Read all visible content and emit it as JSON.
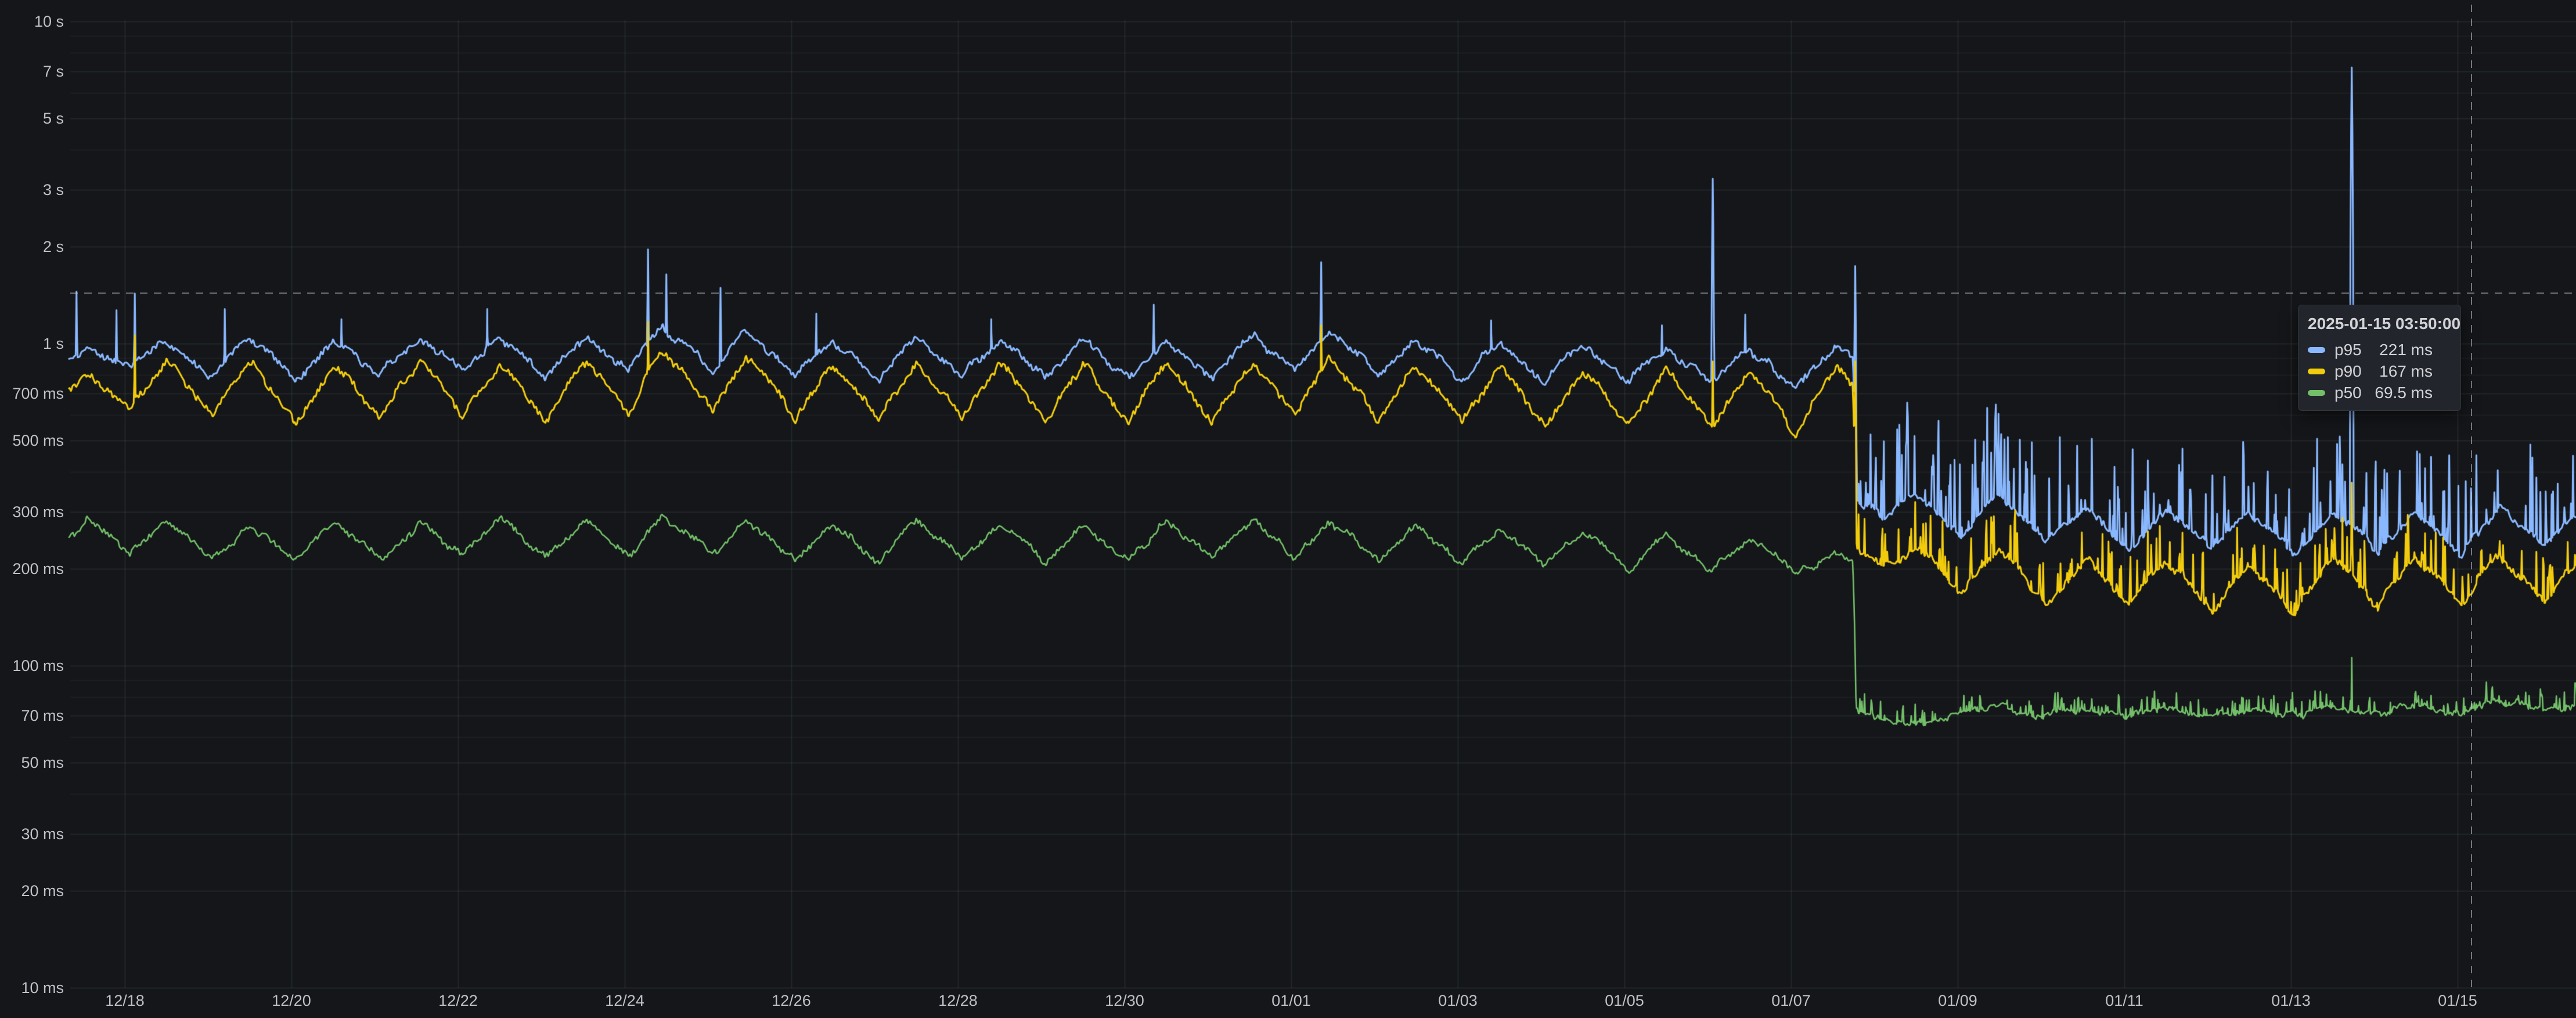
{
  "panel": {
    "background": "#141619",
    "grid_major": "rgba(201,209,224,0.085)",
    "grid_minor": "rgba(201,209,224,0.05)"
  },
  "tooltip": {
    "title": "2025-01-15 03:50:00",
    "rows": [
      {
        "label": "p95",
        "value": "221 ms",
        "color": "#8AB8FF"
      },
      {
        "label": "p90",
        "value": "167 ms",
        "color": "#F2CC0C"
      },
      {
        "label": "p50",
        "value": "69.5 ms",
        "color": "#73BF69"
      }
    ]
  },
  "chart_data": {
    "type": "line",
    "title": "",
    "grid": true,
    "legend_position": "none (values shown in hover tooltip)",
    "x_axis": {
      "unit": "date (MM/DD)",
      "t0_date": "2024-12-18",
      "range_days": [
        -0.67,
        29.45
      ],
      "ticks": [
        {
          "t": 0,
          "label": "12/18"
        },
        {
          "t": 2,
          "label": "12/20"
        },
        {
          "t": 4,
          "label": "12/22"
        },
        {
          "t": 6,
          "label": "12/24"
        },
        {
          "t": 8,
          "label": "12/26"
        },
        {
          "t": 10,
          "label": "12/28"
        },
        {
          "t": 12,
          "label": "12/30"
        },
        {
          "t": 14,
          "label": "01/01"
        },
        {
          "t": 16,
          "label": "01/03"
        },
        {
          "t": 18,
          "label": "01/05"
        },
        {
          "t": 20,
          "label": "01/07"
        },
        {
          "t": 22,
          "label": "01/09"
        },
        {
          "t": 24,
          "label": "01/11"
        },
        {
          "t": 26,
          "label": "01/13"
        },
        {
          "t": 28,
          "label": "01/15"
        }
      ]
    },
    "y_axis": {
      "scale": "log10",
      "unit": "duration",
      "range_ms": [
        10,
        10000
      ],
      "ticks": [
        {
          "ms": 10000,
          "label": "10 s"
        },
        {
          "ms": 7000,
          "label": "7 s"
        },
        {
          "ms": 5000,
          "label": "5 s"
        },
        {
          "ms": 3000,
          "label": "3 s"
        },
        {
          "ms": 2000,
          "label": "2 s"
        },
        {
          "ms": 1000,
          "label": "1 s"
        },
        {
          "ms": 700,
          "label": "700 ms"
        },
        {
          "ms": 500,
          "label": "500 ms"
        },
        {
          "ms": 300,
          "label": "300 ms"
        },
        {
          "ms": 200,
          "label": "200 ms"
        },
        {
          "ms": 100,
          "label": "100 ms"
        },
        {
          "ms": 70,
          "label": "70 ms"
        },
        {
          "ms": 50,
          "label": "50 ms"
        },
        {
          "ms": 30,
          "label": "30 ms"
        },
        {
          "ms": 20,
          "label": "20 ms"
        },
        {
          "ms": 10,
          "label": "10 ms"
        }
      ],
      "minor_gridlines_ms": [
        40,
        60,
        80,
        90,
        400,
        600,
        800,
        900,
        4000,
        6000,
        8000,
        9000
      ]
    },
    "step_change": {
      "day": 20.77,
      "approx_time": "2025-01-07 ~18:30",
      "description": "all percentiles drop sharply (p95 ~950→300 ms, p90 ~750→190 ms, p50 ~210→72 ms)"
    },
    "cursor": {
      "day": 28.16,
      "timestamp": "2025-01-15 03:50:00",
      "value_ms": 1440
    },
    "series": [
      {
        "name": "p95",
        "color": "#8AB8FF",
        "line_width": 3,
        "texture": {
          "coarse": 0.03,
          "fine": 0.022,
          "impulse_after": 20.8,
          "impulse_amp": 1.1
        },
        "anchors": [
          [
            -0.67,
            900
          ],
          [
            -0.45,
            980
          ],
          [
            0.06,
            830
          ],
          [
            0.5,
            1020
          ],
          [
            1.05,
            790
          ],
          [
            1.5,
            1040
          ],
          [
            2.05,
            770
          ],
          [
            2.5,
            1020
          ],
          [
            3.05,
            800
          ],
          [
            3.55,
            1050
          ],
          [
            4.05,
            810
          ],
          [
            4.5,
            1030
          ],
          [
            5.05,
            790
          ],
          [
            5.55,
            1060
          ],
          [
            6.05,
            820
          ],
          [
            6.45,
            1120
          ],
          [
            7.05,
            830
          ],
          [
            7.45,
            1080
          ],
          [
            8.05,
            800
          ],
          [
            8.5,
            1010
          ],
          [
            9.05,
            780
          ],
          [
            9.5,
            1030
          ],
          [
            10.05,
            795
          ],
          [
            10.5,
            1040
          ],
          [
            11.05,
            785
          ],
          [
            11.5,
            1015
          ],
          [
            12.05,
            775
          ],
          [
            12.5,
            1030
          ],
          [
            13.05,
            795
          ],
          [
            13.55,
            1045
          ],
          [
            14.05,
            815
          ],
          [
            14.45,
            1090
          ],
          [
            15.05,
            795
          ],
          [
            15.5,
            1005
          ],
          [
            16.05,
            775
          ],
          [
            16.5,
            995
          ],
          [
            17.05,
            765
          ],
          [
            17.5,
            985
          ],
          [
            18.05,
            755
          ],
          [
            18.5,
            975
          ],
          [
            19.05,
            745
          ],
          [
            19.5,
            955
          ],
          [
            20.05,
            735
          ],
          [
            20.55,
            1000
          ],
          [
            20.74,
            880
          ],
          [
            20.78,
            330
          ],
          [
            21.1,
            290
          ],
          [
            21.5,
            340
          ],
          [
            22.05,
            250
          ],
          [
            22.5,
            340
          ],
          [
            23.05,
            235
          ],
          [
            23.55,
            315
          ],
          [
            24.05,
            230
          ],
          [
            24.5,
            305
          ],
          [
            25.05,
            225
          ],
          [
            25.5,
            298
          ],
          [
            26.05,
            222
          ],
          [
            26.5,
            302
          ],
          [
            27.05,
            226
          ],
          [
            27.5,
            302
          ],
          [
            28.05,
            222
          ],
          [
            28.5,
            312
          ],
          [
            29.05,
            232
          ],
          [
            29.45,
            300
          ]
        ],
        "spikes": [
          [
            -0.58,
            1450
          ],
          [
            -0.1,
            1270
          ],
          [
            0.12,
            1430
          ],
          [
            1.2,
            1280
          ],
          [
            2.6,
            1190
          ],
          [
            4.35,
            1280
          ],
          [
            6.28,
            1960
          ],
          [
            6.5,
            1640
          ],
          [
            7.15,
            1490
          ],
          [
            8.3,
            1240
          ],
          [
            10.4,
            1190
          ],
          [
            12.35,
            1320
          ],
          [
            14.36,
            1790
          ],
          [
            16.4,
            1180
          ],
          [
            18.45,
            1140
          ],
          [
            19.06,
            3250
          ],
          [
            19.45,
            1230
          ],
          [
            20.77,
            1740
          ],
          [
            21.3,
            560
          ],
          [
            22.45,
            500
          ],
          [
            24.1,
            470
          ],
          [
            26.73,
            7200
          ],
          [
            27.9,
            450
          ]
        ]
      },
      {
        "name": "p90",
        "color": "#F2CC0C",
        "line_width": 3,
        "texture": {
          "coarse": 0.03,
          "fine": 0.024,
          "impulse_after": 20.8,
          "impulse_amp": 0.5
        },
        "anchors": [
          [
            -0.67,
            700
          ],
          [
            -0.45,
            810
          ],
          [
            0.06,
            620
          ],
          [
            0.5,
            880
          ],
          [
            1.05,
            580
          ],
          [
            1.5,
            870
          ],
          [
            2.05,
            555
          ],
          [
            2.5,
            860
          ],
          [
            3.05,
            580
          ],
          [
            3.55,
            880
          ],
          [
            4.05,
            590
          ],
          [
            4.5,
            870
          ],
          [
            5.05,
            575
          ],
          [
            5.55,
            890
          ],
          [
            6.05,
            600
          ],
          [
            6.45,
            960
          ],
          [
            7.05,
            610
          ],
          [
            7.45,
            920
          ],
          [
            8.05,
            585
          ],
          [
            8.5,
            850
          ],
          [
            9.05,
            570
          ],
          [
            9.5,
            865
          ],
          [
            10.05,
            580
          ],
          [
            10.5,
            875
          ],
          [
            11.05,
            572
          ],
          [
            11.5,
            855
          ],
          [
            12.05,
            565
          ],
          [
            12.5,
            865
          ],
          [
            13.05,
            578
          ],
          [
            13.55,
            878
          ],
          [
            14.05,
            592
          ],
          [
            14.45,
            915
          ],
          [
            15.05,
            578
          ],
          [
            15.5,
            845
          ],
          [
            16.05,
            562
          ],
          [
            16.5,
            835
          ],
          [
            17.05,
            552
          ],
          [
            17.5,
            825
          ],
          [
            18.05,
            545
          ],
          [
            18.5,
            818
          ],
          [
            19.05,
            538
          ],
          [
            19.5,
            800
          ],
          [
            20.05,
            530
          ],
          [
            20.55,
            840
          ],
          [
            20.74,
            730
          ],
          [
            20.78,
            235
          ],
          [
            21.1,
            200
          ],
          [
            21.5,
            235
          ],
          [
            22.05,
            168
          ],
          [
            22.5,
            232
          ],
          [
            23.05,
            152
          ],
          [
            23.55,
            218
          ],
          [
            24.05,
            150
          ],
          [
            24.5,
            212
          ],
          [
            25.05,
            146
          ],
          [
            25.5,
            206
          ],
          [
            26.05,
            144
          ],
          [
            26.5,
            212
          ],
          [
            27.05,
            152
          ],
          [
            27.5,
            216
          ],
          [
            28.05,
            154
          ],
          [
            28.5,
            222
          ],
          [
            29.05,
            156
          ],
          [
            29.45,
            212
          ]
        ],
        "spikes": [
          [
            0.12,
            1060
          ],
          [
            6.28,
            1170
          ],
          [
            14.36,
            1140
          ],
          [
            19.06,
            880
          ],
          [
            20.77,
            880
          ],
          [
            26.73,
            370
          ]
        ]
      },
      {
        "name": "p50",
        "color": "#73BF69",
        "line_width": 2.6,
        "texture": {
          "coarse": 0.025,
          "fine": 0.02,
          "impulse_after": 20.8,
          "impulse_amp": 0.18
        },
        "anchors": [
          [
            -0.67,
            252
          ],
          [
            -0.45,
            285
          ],
          [
            0.06,
            222
          ],
          [
            0.5,
            282
          ],
          [
            1.05,
            212
          ],
          [
            1.5,
            268
          ],
          [
            2.05,
            208
          ],
          [
            2.5,
            278
          ],
          [
            3.05,
            214
          ],
          [
            3.55,
            276
          ],
          [
            4.05,
            217
          ],
          [
            4.5,
            284
          ],
          [
            5.05,
            214
          ],
          [
            5.55,
            280
          ],
          [
            6.05,
            219
          ],
          [
            6.45,
            290
          ],
          [
            7.05,
            221
          ],
          [
            7.45,
            280
          ],
          [
            8.05,
            214
          ],
          [
            8.5,
            274
          ],
          [
            9.05,
            211
          ],
          [
            9.5,
            279
          ],
          [
            10.05,
            214
          ],
          [
            10.5,
            277
          ],
          [
            11.05,
            211
          ],
          [
            11.5,
            273
          ],
          [
            12.05,
            209
          ],
          [
            12.5,
            278
          ],
          [
            13.05,
            213
          ],
          [
            13.55,
            280
          ],
          [
            14.05,
            215
          ],
          [
            14.45,
            283
          ],
          [
            15.05,
            211
          ],
          [
            15.5,
            270
          ],
          [
            16.05,
            207
          ],
          [
            16.5,
            265
          ],
          [
            17.05,
            203
          ],
          [
            17.5,
            260
          ],
          [
            18.05,
            199
          ],
          [
            18.5,
            255
          ],
          [
            19.05,
            196
          ],
          [
            19.5,
            248
          ],
          [
            20.05,
            192
          ],
          [
            20.55,
            225
          ],
          [
            20.74,
            208
          ],
          [
            20.78,
            73
          ],
          [
            21.1,
            70
          ],
          [
            21.6,
            65
          ],
          [
            22.05,
            71
          ],
          [
            22.5,
            74
          ],
          [
            23.05,
            70
          ],
          [
            23.55,
            73
          ],
          [
            24.05,
            69
          ],
          [
            24.5,
            74
          ],
          [
            25.05,
            70
          ],
          [
            25.5,
            73
          ],
          [
            26.05,
            70
          ],
          [
            26.5,
            75
          ],
          [
            27.05,
            71
          ],
          [
            27.5,
            76
          ],
          [
            28.05,
            70
          ],
          [
            28.5,
            78
          ],
          [
            29.05,
            72
          ],
          [
            29.45,
            75
          ]
        ],
        "spikes": [
          [
            26.73,
            106
          ]
        ]
      }
    ]
  }
}
